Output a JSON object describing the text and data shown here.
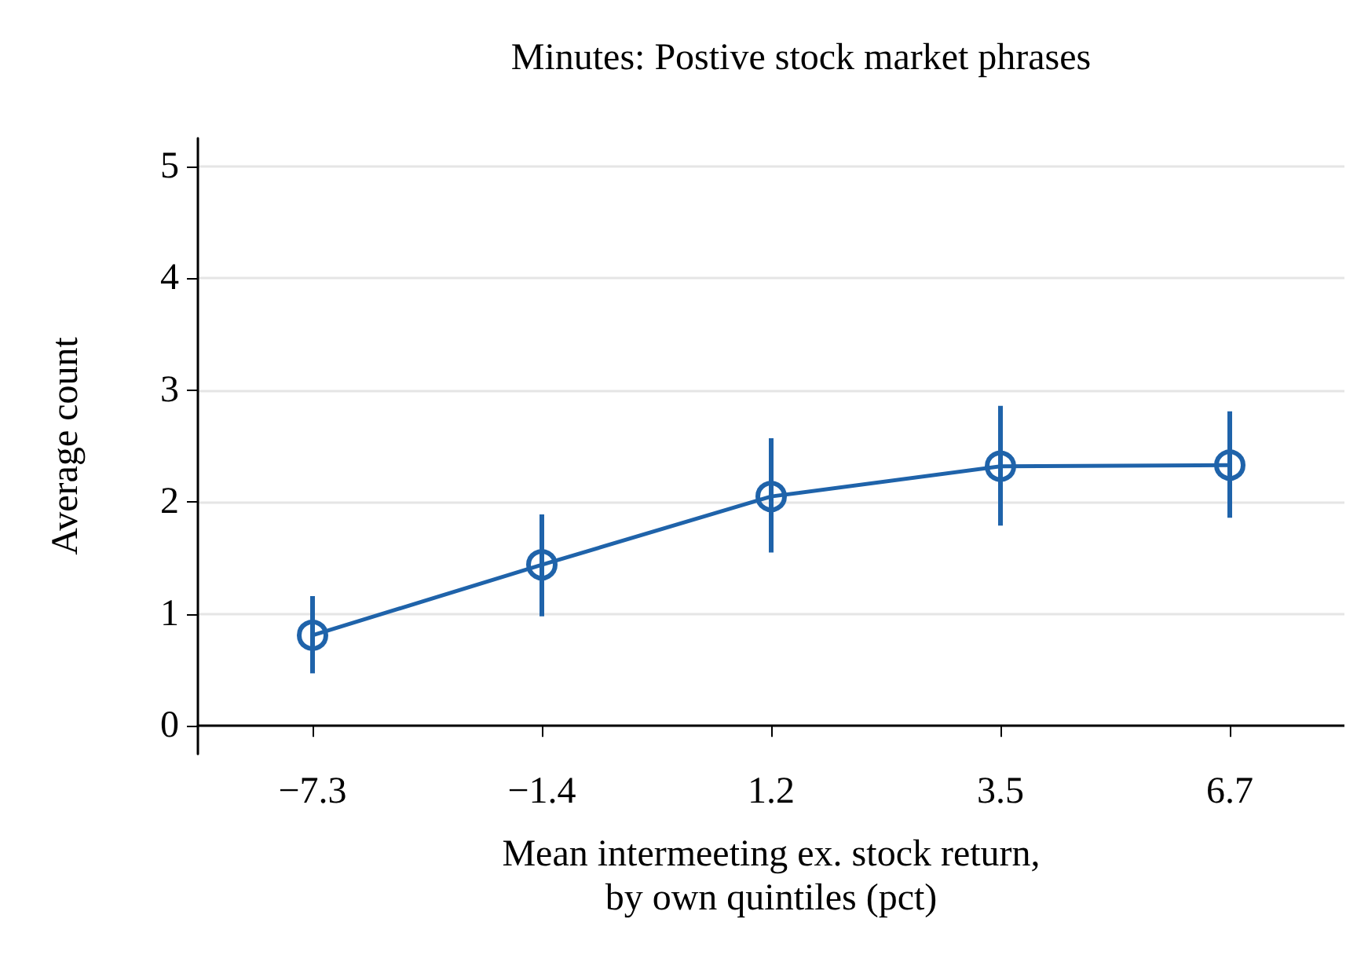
{
  "chart_data": {
    "type": "line",
    "title": "Minutes: Postive stock market phrases",
    "xlabel": "Mean intermeeting ex. stock return,\nby own quintiles (pct)",
    "ylabel": "Average count",
    "categories": [
      "−7.3",
      "−1.4",
      "1.2",
      "3.5",
      "6.7"
    ],
    "series": [
      {
        "color": "#1f63aa",
        "values": [
          0.81,
          1.44,
          2.05,
          2.32,
          2.33
        ],
        "errors": [
          [
            0.47,
            1.16
          ],
          [
            0.98,
            1.89
          ],
          [
            1.55,
            2.57
          ],
          [
            1.79,
            2.86
          ],
          [
            1.86,
            2.81
          ]
        ]
      }
    ],
    "ylim": [
      -0.25,
      5.25
    ],
    "yticks": [
      0,
      1,
      2,
      3,
      4,
      5
    ],
    "grid": "y",
    "marker": "circle",
    "line_style": "solid"
  }
}
